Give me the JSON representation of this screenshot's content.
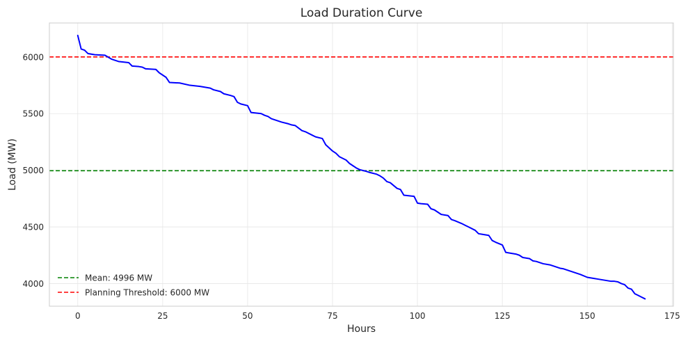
{
  "chart_data": {
    "type": "line",
    "title": "Load Duration Curve",
    "xlabel": "Hours",
    "ylabel": "Load (MW)",
    "xlim": [
      -8.35,
      175.35
    ],
    "ylim": [
      3800,
      6300
    ],
    "xticks": [
      0,
      25,
      50,
      75,
      100,
      125,
      150,
      175
    ],
    "yticks": [
      4000,
      4500,
      5000,
      5500,
      6000
    ],
    "grid": true,
    "legend_position": "lower-left",
    "series": [
      {
        "name": "Load",
        "color": "#0000ff",
        "x": [
          0,
          1,
          2,
          3,
          5,
          8,
          10,
          12,
          15,
          16,
          18,
          19,
          20,
          23,
          24,
          26,
          27,
          30,
          33,
          36,
          39,
          40,
          42,
          43,
          45,
          46,
          47,
          48,
          50,
          51,
          54,
          55,
          56,
          57,
          58,
          60,
          62,
          63,
          64,
          66,
          67,
          69,
          70,
          72,
          73,
          75,
          76,
          77,
          79,
          80,
          82,
          83,
          85,
          86,
          88,
          89,
          90,
          91,
          92,
          94,
          95,
          96,
          99,
          100,
          101,
          103,
          104,
          105,
          106,
          107,
          109,
          110,
          111,
          113,
          114,
          115,
          117,
          118,
          119,
          121,
          122,
          123,
          125,
          126,
          127,
          129,
          130,
          131,
          133,
          134,
          135,
          136,
          137,
          139,
          140,
          141,
          142,
          143,
          145,
          146,
          147,
          148,
          150,
          152,
          153,
          155,
          157,
          158,
          159,
          160,
          161,
          162,
          163,
          164,
          165,
          166,
          167
        ],
        "y": [
          6190,
          6070,
          6060,
          6030,
          6020,
          6015,
          5980,
          5960,
          5950,
          5920,
          5915,
          5910,
          5895,
          5890,
          5860,
          5820,
          5775,
          5770,
          5750,
          5740,
          5725,
          5710,
          5695,
          5675,
          5660,
          5650,
          5600,
          5585,
          5570,
          5510,
          5500,
          5485,
          5475,
          5455,
          5445,
          5425,
          5410,
          5400,
          5395,
          5350,
          5340,
          5310,
          5295,
          5280,
          5225,
          5170,
          5150,
          5120,
          5090,
          5060,
          5020,
          5005,
          4990,
          4980,
          4965,
          4950,
          4930,
          4900,
          4890,
          4840,
          4830,
          4780,
          4770,
          4710,
          4705,
          4700,
          4660,
          4650,
          4630,
          4610,
          4600,
          4565,
          4555,
          4530,
          4515,
          4500,
          4470,
          4440,
          4435,
          4425,
          4380,
          4365,
          4340,
          4275,
          4270,
          4260,
          4250,
          4230,
          4220,
          4200,
          4195,
          4185,
          4175,
          4165,
          4155,
          4145,
          4135,
          4130,
          4110,
          4100,
          4090,
          4080,
          4055,
          4045,
          4040,
          4030,
          4020,
          4020,
          4015,
          4000,
          3990,
          3960,
          3950,
          3910,
          3895,
          3880,
          3865
        ]
      }
    ],
    "hlines": [
      {
        "name": "Mean: 4996 MW",
        "value": 4996,
        "color": "#008000",
        "style": "dashed"
      },
      {
        "name": "Planning Threshold: 6000 MW",
        "value": 6000,
        "color": "#ff0000",
        "style": "dashed"
      }
    ],
    "legend": [
      {
        "label": "Mean: 4996 MW",
        "color": "#008000"
      },
      {
        "label": "Planning Threshold: 6000 MW",
        "color": "#ff0000"
      }
    ]
  }
}
